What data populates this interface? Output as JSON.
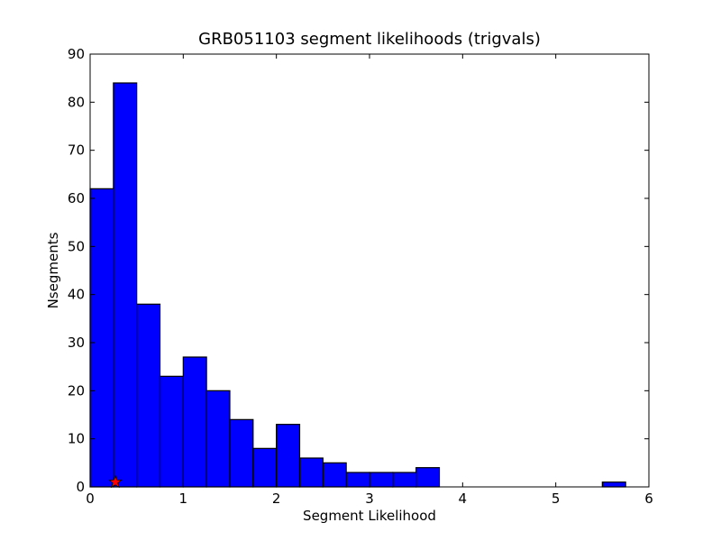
{
  "chart_data": {
    "type": "bar",
    "title": "GRB051103 segment likelihoods (trigvals)",
    "xlabel": "Segment Likelihood",
    "ylabel": "Nsegments",
    "xlim": [
      0,
      6
    ],
    "ylim": [
      0,
      90
    ],
    "xticks": [
      "0",
      "1",
      "2",
      "3",
      "4",
      "5",
      "6"
    ],
    "yticks": [
      "0",
      "10",
      "20",
      "30",
      "40",
      "50",
      "60",
      "70",
      "80",
      "90"
    ],
    "bin_width": 0.25,
    "bin_edges_start": [
      0,
      0.25,
      0.5,
      0.75,
      1.0,
      1.25,
      1.5,
      1.75,
      2.0,
      2.25,
      2.5,
      2.75,
      3.0,
      3.25,
      3.5,
      3.75,
      4.0,
      4.25,
      4.5,
      4.75,
      5.0,
      5.25,
      5.5
    ],
    "values": [
      62,
      84,
      38,
      23,
      27,
      20,
      14,
      8,
      13,
      6,
      5,
      3,
      3,
      3,
      4,
      0,
      0,
      0,
      0,
      0,
      0,
      0,
      1
    ],
    "bar_color": "#0000ff",
    "marker": {
      "type": "star",
      "x": 0.27,
      "y": 1,
      "color": "#ff0000"
    },
    "grid": false,
    "legend": null
  }
}
